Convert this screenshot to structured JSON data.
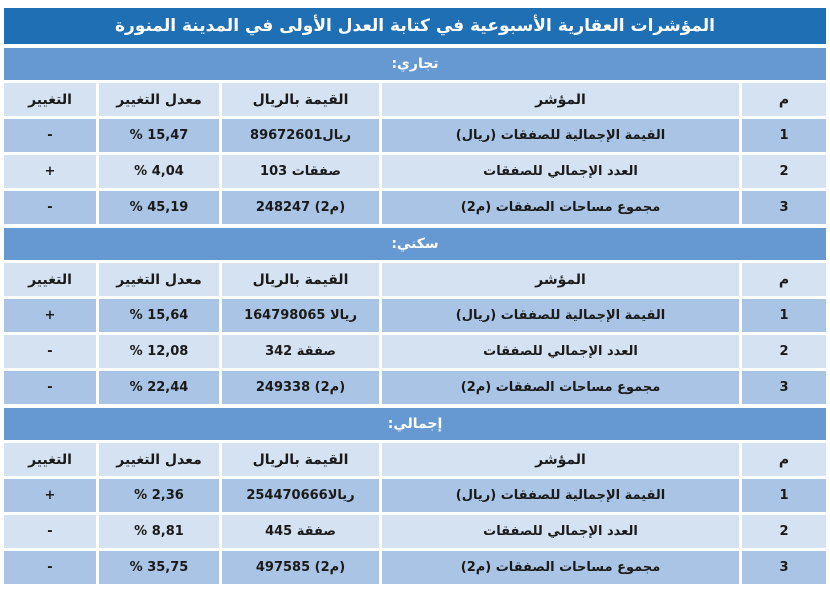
{
  "title": "المؤشرات العقارية الأسبوعية في كتابة العدل الأولى في المدينة المنورة",
  "headers": {
    "m": "م",
    "indicator": "المؤشر",
    "value": "القيمة بالريال",
    "rate": "معدل التغيير",
    "change": "التغيير"
  },
  "sections": [
    {
      "label": "تجاري:",
      "rows": [
        {
          "m": "1",
          "indicator": "القيمة الإجمالية للصفقات (ريال)",
          "value": "89672601ريال",
          "rate": "% 15,47",
          "change": "-"
        },
        {
          "m": "2",
          "indicator": "العدد الإجمالي للصفقات",
          "value": "103 صفقات",
          "rate": "% 4,04",
          "change": "+"
        },
        {
          "m": "3",
          "indicator": "مجموع مساحات الصفقات (م2)",
          "value": "248247 (م2)",
          "rate": "% 45,19",
          "change": "-"
        }
      ]
    },
    {
      "label": "سكني:",
      "rows": [
        {
          "m": "1",
          "indicator": "القيمة الإجمالية للصفقات (ريال)",
          "value": "164798065 ريالا",
          "rate": "% 15,64",
          "change": "+"
        },
        {
          "m": "2",
          "indicator": "العدد الإجمالي للصفقات",
          "value": "342 صفقة",
          "rate": "% 12,08",
          "change": "-"
        },
        {
          "m": "3",
          "indicator": "مجموع مساحات الصفقات (م2)",
          "value": "249338 (م2)",
          "rate": "% 22,44",
          "change": "-"
        }
      ]
    },
    {
      "label": "إجمالي:",
      "rows": [
        {
          "m": "1",
          "indicator": "القيمة الإجمالية للصفقات (ريال)",
          "value": "254470666ريالا",
          "rate": "% 2,36",
          "change": "+"
        },
        {
          "m": "2",
          "indicator": "العدد الإجمالي للصفقات",
          "value": "445 صفقة",
          "rate": "% 8,81",
          "change": "-"
        },
        {
          "m": "3",
          "indicator": "مجموع مساحات الصفقات (م2)",
          "value": "497585 (م2)",
          "rate": "% 35,75",
          "change": "-"
        }
      ]
    }
  ],
  "colors": {
    "title_bg": "#1f6fb5",
    "section_bg": "#6699d1",
    "light_cell": "#d4e2f2",
    "dark_cell": "#a9c4e4"
  }
}
